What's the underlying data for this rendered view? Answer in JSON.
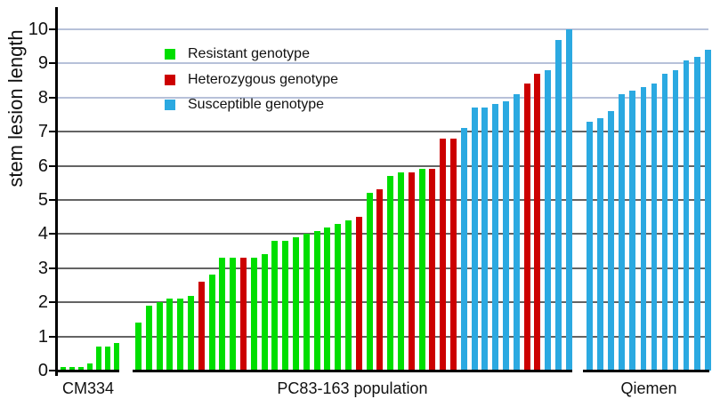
{
  "chart_data": {
    "type": "bar",
    "title": "",
    "ylabel": "stem lesion length",
    "xlabel": "",
    "ylim": [
      0,
      10
    ],
    "yticks": [
      0,
      1,
      2,
      3,
      4,
      5,
      6,
      7,
      8,
      9,
      10
    ],
    "grid": "horizontal",
    "legend_position": "upper-left-inside",
    "legend": [
      {
        "code": "R",
        "label": "Resistant genotype",
        "color": "#00DE00"
      },
      {
        "code": "H",
        "label": "Heterozygous genotype",
        "color": "#CC0000"
      },
      {
        "code": "S",
        "label": "Susceptible genotype",
        "color": "#2BA9E1"
      }
    ],
    "groups": [
      {
        "label": "CM334",
        "bars": [
          {
            "v": 0.1,
            "g": "R"
          },
          {
            "v": 0.1,
            "g": "R"
          },
          {
            "v": 0.1,
            "g": "R"
          },
          {
            "v": 0.2,
            "g": "R"
          },
          {
            "v": 0.7,
            "g": "R"
          },
          {
            "v": 0.7,
            "g": "R"
          },
          {
            "v": 0.8,
            "g": "R"
          }
        ]
      },
      {
        "label": "PC83-163 population",
        "bars": [
          {
            "v": 1.4,
            "g": "R"
          },
          {
            "v": 1.9,
            "g": "R"
          },
          {
            "v": 2.0,
            "g": "R"
          },
          {
            "v": 2.1,
            "g": "R"
          },
          {
            "v": 2.1,
            "g": "R"
          },
          {
            "v": 2.2,
            "g": "R"
          },
          {
            "v": 2.6,
            "g": "H"
          },
          {
            "v": 2.8,
            "g": "R"
          },
          {
            "v": 3.3,
            "g": "R"
          },
          {
            "v": 3.3,
            "g": "R"
          },
          {
            "v": 3.3,
            "g": "H"
          },
          {
            "v": 3.3,
            "g": "R"
          },
          {
            "v": 3.4,
            "g": "R"
          },
          {
            "v": 3.8,
            "g": "R"
          },
          {
            "v": 3.8,
            "g": "R"
          },
          {
            "v": 3.9,
            "g": "R"
          },
          {
            "v": 4.0,
            "g": "R"
          },
          {
            "v": 4.1,
            "g": "R"
          },
          {
            "v": 4.2,
            "g": "R"
          },
          {
            "v": 4.3,
            "g": "R"
          },
          {
            "v": 4.4,
            "g": "R"
          },
          {
            "v": 4.5,
            "g": "H"
          },
          {
            "v": 5.2,
            "g": "R"
          },
          {
            "v": 5.3,
            "g": "H"
          },
          {
            "v": 5.7,
            "g": "R"
          },
          {
            "v": 5.8,
            "g": "R"
          },
          {
            "v": 5.8,
            "g": "H"
          },
          {
            "v": 5.9,
            "g": "R"
          },
          {
            "v": 5.9,
            "g": "H"
          },
          {
            "v": 6.8,
            "g": "H"
          },
          {
            "v": 6.8,
            "g": "H"
          },
          {
            "v": 7.1,
            "g": "S"
          },
          {
            "v": 7.7,
            "g": "S"
          },
          {
            "v": 7.7,
            "g": "S"
          },
          {
            "v": 7.8,
            "g": "S"
          },
          {
            "v": 7.9,
            "g": "S"
          },
          {
            "v": 8.1,
            "g": "S"
          },
          {
            "v": 8.4,
            "g": "H"
          },
          {
            "v": 8.7,
            "g": "H"
          },
          {
            "v": 8.8,
            "g": "S"
          },
          {
            "v": 9.7,
            "g": "S"
          },
          {
            "v": 10.0,
            "g": "S"
          }
        ]
      },
      {
        "label": "Qiemen",
        "bars": [
          {
            "v": 7.3,
            "g": "S"
          },
          {
            "v": 7.4,
            "g": "S"
          },
          {
            "v": 7.6,
            "g": "S"
          },
          {
            "v": 8.1,
            "g": "S"
          },
          {
            "v": 8.2,
            "g": "S"
          },
          {
            "v": 8.3,
            "g": "S"
          },
          {
            "v": 8.4,
            "g": "S"
          },
          {
            "v": 8.7,
            "g": "S"
          },
          {
            "v": 8.8,
            "g": "S"
          },
          {
            "v": 9.1,
            "g": "S"
          },
          {
            "v": 9.2,
            "g": "S"
          },
          {
            "v": 9.4,
            "g": "S"
          }
        ]
      }
    ]
  }
}
